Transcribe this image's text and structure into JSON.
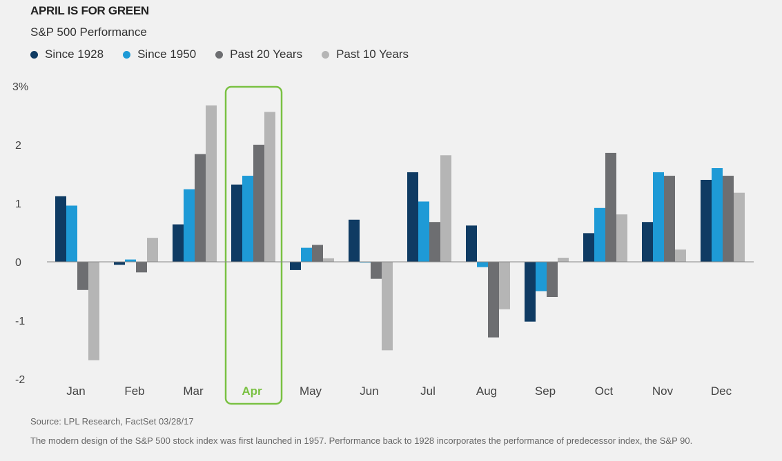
{
  "chart_data": {
    "type": "bar",
    "title": "APRIL IS FOR GREEN",
    "subtitle": "S&P 500 Performance",
    "categories": [
      "Jan",
      "Feb",
      "Mar",
      "Apr",
      "May",
      "Jun",
      "Jul",
      "Aug",
      "Sep",
      "Oct",
      "Nov",
      "Dec"
    ],
    "highlight_category": "Apr",
    "highlight_color": "#7ac143",
    "series": [
      {
        "name": "Since 1928",
        "color": "#0f3b63",
        "values": [
          1.12,
          -0.05,
          0.64,
          1.32,
          -0.14,
          0.72,
          1.53,
          0.62,
          -1.02,
          0.49,
          0.68,
          1.4
        ]
      },
      {
        "name": "Since 1950",
        "color": "#1e9ad6",
        "values": [
          0.96,
          0.04,
          1.24,
          1.47,
          0.24,
          -0.01,
          1.03,
          -0.09,
          -0.5,
          0.92,
          1.53,
          1.6
        ]
      },
      {
        "name": "Past 20 Years",
        "color": "#6d6e71",
        "values": [
          -0.48,
          -0.18,
          1.84,
          2.0,
          0.29,
          -0.29,
          0.68,
          -1.29,
          -0.6,
          1.86,
          1.47,
          1.47
        ]
      },
      {
        "name": "Past 10 Years",
        "color": "#b5b5b5",
        "values": [
          -1.68,
          0.41,
          2.67,
          2.56,
          0.06,
          -1.51,
          1.82,
          -0.81,
          0.07,
          0.81,
          0.21,
          1.18
        ]
      }
    ],
    "ylim": [
      -2,
      3
    ],
    "yticks": [
      "-2",
      "-1",
      "0",
      "1",
      "2",
      "3%"
    ],
    "yticks_values": [
      -2,
      -1,
      0,
      1,
      2,
      3
    ],
    "grid": false,
    "legend_position": "top-left"
  },
  "footer": {
    "source": "Source: LPL Research, FactSet  03/28/17",
    "note": "The modern design of the S&P 500 stock index was first launched in 1957. Performance back to 1928 incorporates the performance of predecessor index, the S&P 90."
  }
}
